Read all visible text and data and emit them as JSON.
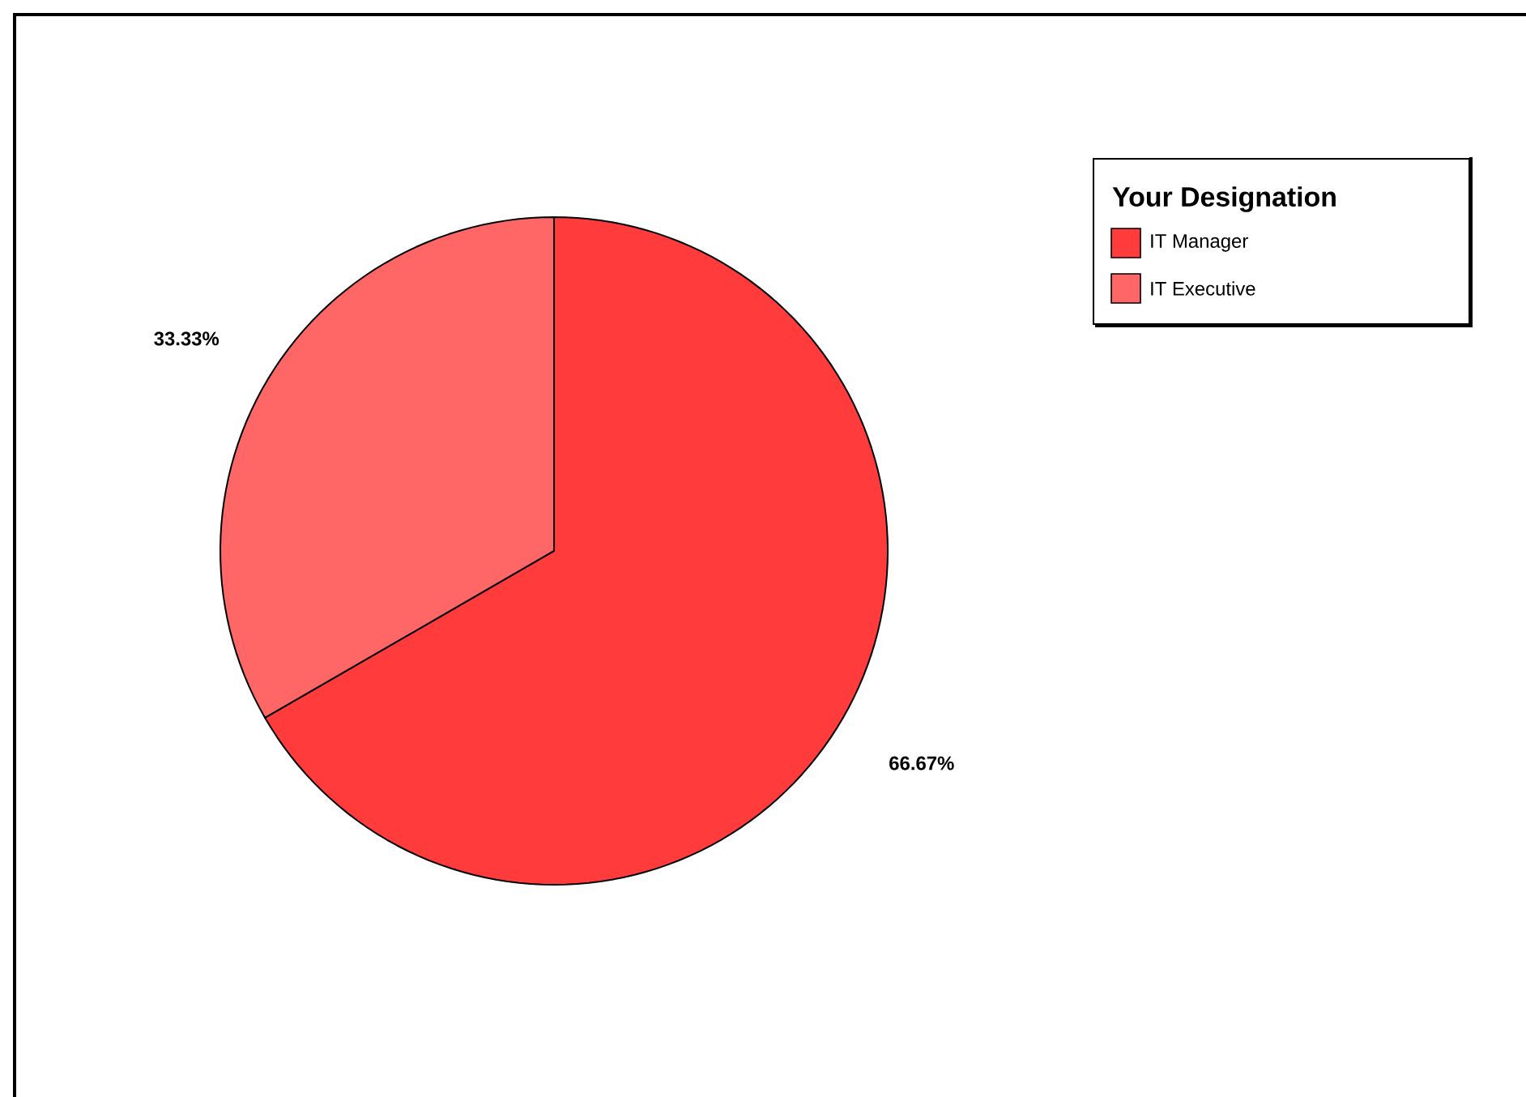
{
  "chart_data": {
    "type": "pie",
    "legend_title": "Your Designation",
    "legend": "top right",
    "categories": [
      "IT Manager",
      "IT Executive"
    ],
    "values": [
      66.67,
      33.33
    ],
    "colors": [
      "#ff3b3b",
      "#ff6666"
    ],
    "value_labels": [
      "66.67%",
      "33.33%"
    ]
  }
}
